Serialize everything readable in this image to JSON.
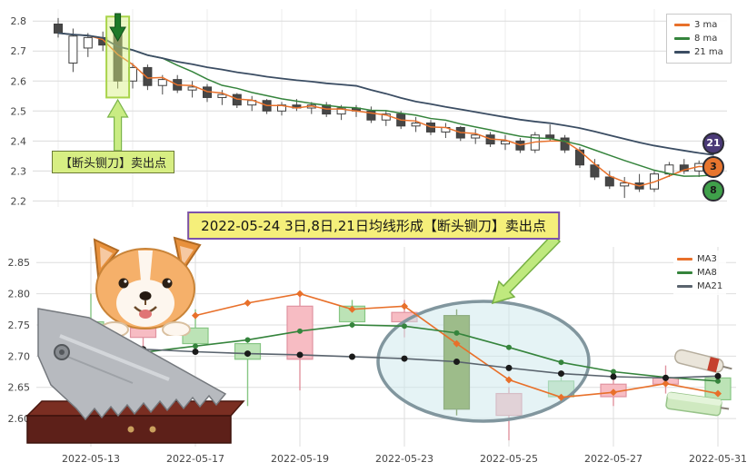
{
  "banner": {
    "text": "2022-05-24 3日,8日,21日均线形成【断头铡刀】卖出点",
    "bg": "#f5ef7a",
    "border": "#7b52ab"
  },
  "chart_data": [
    {
      "type": "candlestick",
      "role": "daily-overview",
      "ylim": [
        2.18,
        2.84
      ],
      "yticks": [
        "2.2",
        "2.3",
        "2.4",
        "2.5",
        "2.6",
        "2.7",
        "2.8"
      ],
      "grid": true,
      "legend_position": "top-right",
      "legend": [
        {
          "label": "3 ma",
          "color": "#e8702a"
        },
        {
          "label": "8 ma",
          "color": "#35843c"
        },
        {
          "label": "21 ma",
          "color": "#3b4d63"
        }
      ],
      "ma_periods": [
        3,
        8,
        21
      ],
      "candles_ohlc": [
        [
          2.79,
          2.81,
          2.745,
          2.76
        ],
        [
          2.66,
          2.775,
          2.63,
          2.75
        ],
        [
          2.71,
          2.76,
          2.68,
          2.745
        ],
        [
          2.745,
          2.765,
          2.7,
          2.72
        ],
        [
          2.755,
          2.78,
          2.575,
          2.6
        ],
        [
          2.6,
          2.66,
          2.575,
          2.645
        ],
        [
          2.645,
          2.655,
          2.57,
          2.585
        ],
        [
          2.585,
          2.62,
          2.555,
          2.605
        ],
        [
          2.605,
          2.62,
          2.56,
          2.57
        ],
        [
          2.57,
          2.6,
          2.545,
          2.58
        ],
        [
          2.58,
          2.59,
          2.53,
          2.545
        ],
        [
          2.545,
          2.57,
          2.52,
          2.555
        ],
        [
          2.555,
          2.56,
          2.51,
          2.52
        ],
        [
          2.52,
          2.55,
          2.5,
          2.535
        ],
        [
          2.535,
          2.54,
          2.49,
          2.5
        ],
        [
          2.5,
          2.53,
          2.485,
          2.52
        ],
        [
          2.52,
          2.54,
          2.5,
          2.51
        ],
        [
          2.51,
          2.53,
          2.49,
          2.52
        ],
        [
          2.52,
          2.53,
          2.48,
          2.49
        ],
        [
          2.49,
          2.52,
          2.47,
          2.51
        ],
        [
          2.51,
          2.52,
          2.48,
          2.5
        ],
        [
          2.5,
          2.515,
          2.46,
          2.47
        ],
        [
          2.47,
          2.5,
          2.45,
          2.49
        ],
        [
          2.49,
          2.5,
          2.44,
          2.45
        ],
        [
          2.45,
          2.48,
          2.43,
          2.46
        ],
        [
          2.46,
          2.47,
          2.42,
          2.43
        ],
        [
          2.43,
          2.46,
          2.41,
          2.445
        ],
        [
          2.445,
          2.45,
          2.4,
          2.41
        ],
        [
          2.41,
          2.44,
          2.39,
          2.42
        ],
        [
          2.42,
          2.43,
          2.38,
          2.39
        ],
        [
          2.39,
          2.42,
          2.37,
          2.4
        ],
        [
          2.4,
          2.41,
          2.36,
          2.37
        ],
        [
          2.37,
          2.43,
          2.36,
          2.42
        ],
        [
          2.42,
          2.455,
          2.4,
          2.41
        ],
        [
          2.41,
          2.42,
          2.36,
          2.37
        ],
        [
          2.37,
          2.38,
          2.31,
          2.32
        ],
        [
          2.32,
          2.34,
          2.27,
          2.28
        ],
        [
          2.28,
          2.3,
          2.24,
          2.25
        ],
        [
          2.25,
          2.28,
          2.21,
          2.26
        ],
        [
          2.26,
          2.29,
          2.23,
          2.24
        ],
        [
          2.24,
          2.3,
          2.23,
          2.29
        ],
        [
          2.29,
          2.33,
          2.28,
          2.32
        ],
        [
          2.32,
          2.34,
          2.29,
          2.3
        ],
        [
          2.3,
          2.335,
          2.28,
          2.325
        ],
        [
          2.325,
          2.33,
          2.3,
          2.31
        ]
      ],
      "highlight_index": 4,
      "annotation_label": "【断头铡刀】卖出点",
      "annotation_bg": "#d7ee83",
      "badges": [
        {
          "label": "21",
          "bg": "#4b3a78",
          "fg": "#ffffff"
        },
        {
          "label": "3",
          "bg": "#e8752e",
          "fg": "#1a1a1a"
        },
        {
          "label": "8",
          "bg": "#3fa04a",
          "fg": "#1a1a1a"
        }
      ]
    },
    {
      "type": "candlestick",
      "role": "zoom-may",
      "ylim": [
        2.555,
        2.875
      ],
      "yticks": [
        "2.60",
        "2.65",
        "2.70",
        "2.75",
        "2.80",
        "2.85"
      ],
      "dates": [
        "2022-05-13",
        "2022-05-16",
        "2022-05-17",
        "2022-05-18",
        "2022-05-19",
        "2022-05-20",
        "2022-05-23",
        "2022-05-24",
        "2022-05-25",
        "2022-05-26",
        "2022-05-27",
        "2022-05-30",
        "2022-05-31"
      ],
      "xticks": [
        {
          "index": 0,
          "label": "2022-05-13"
        },
        {
          "index": 2,
          "label": "2022-05-17"
        },
        {
          "index": 4,
          "label": "2022-05-19"
        },
        {
          "index": 6,
          "label": "2022-05-23"
        },
        {
          "index": 8,
          "label": "2022-05-25"
        },
        {
          "index": 10,
          "label": "2022-05-27"
        },
        {
          "index": 12,
          "label": "2022-05-31"
        }
      ],
      "candles_ohlc": [
        [
          2.755,
          2.8,
          2.715,
          2.73
        ],
        [
          2.73,
          2.76,
          2.7,
          2.745
        ],
        [
          2.745,
          2.775,
          2.71,
          2.72
        ],
        [
          2.72,
          2.73,
          2.62,
          2.695
        ],
        [
          2.695,
          2.8,
          2.645,
          2.78
        ],
        [
          2.78,
          2.79,
          2.745,
          2.755
        ],
        [
          2.755,
          2.79,
          2.73,
          2.77
        ],
        [
          2.765,
          2.775,
          2.605,
          2.615
        ],
        [
          2.605,
          2.65,
          2.565,
          2.64
        ],
        [
          2.66,
          2.675,
          2.625,
          2.635
        ],
        [
          2.635,
          2.665,
          2.62,
          2.655
        ],
        [
          2.655,
          2.685,
          2.64,
          2.665
        ],
        [
          2.665,
          2.675,
          2.615,
          2.63
        ]
      ],
      "up_fill": "#f7bcc3",
      "up_edge": "#e093a0",
      "down_fill": "#bce3b6",
      "down_edge": "#87c684",
      "highlight_index": 7,
      "highlight_fill": "#6e9129",
      "highlight_edge": "#55741c",
      "series": [
        {
          "name": "MA3",
          "color": "#e8702a",
          "marker": "diamond",
          "values": [
            null,
            null,
            2.765,
            2.785,
            2.8,
            2.775,
            2.78,
            2.72,
            2.662,
            2.634,
            2.642,
            2.656,
            2.64
          ]
        },
        {
          "name": "MA8",
          "color": "#35843c",
          "marker": "circle",
          "values": [
            null,
            2.706,
            2.716,
            2.726,
            2.74,
            2.75,
            2.748,
            2.737,
            2.714,
            2.69,
            2.675,
            2.666,
            2.66
          ]
        },
        {
          "name": "MA21",
          "color": "#5a646e",
          "marker": "dot",
          "marker_color": "#1a1a1a",
          "values": [
            2.715,
            2.711,
            2.707,
            2.704,
            2.702,
            2.699,
            2.696,
            2.691,
            2.681,
            2.672,
            2.667,
            2.665,
            2.668
          ]
        }
      ],
      "legend": [
        {
          "label": "MA3",
          "color": "#e8702a"
        },
        {
          "label": "MA8",
          "color": "#35843c"
        },
        {
          "label": "MA21",
          "color": "#5a646e"
        }
      ]
    }
  ]
}
